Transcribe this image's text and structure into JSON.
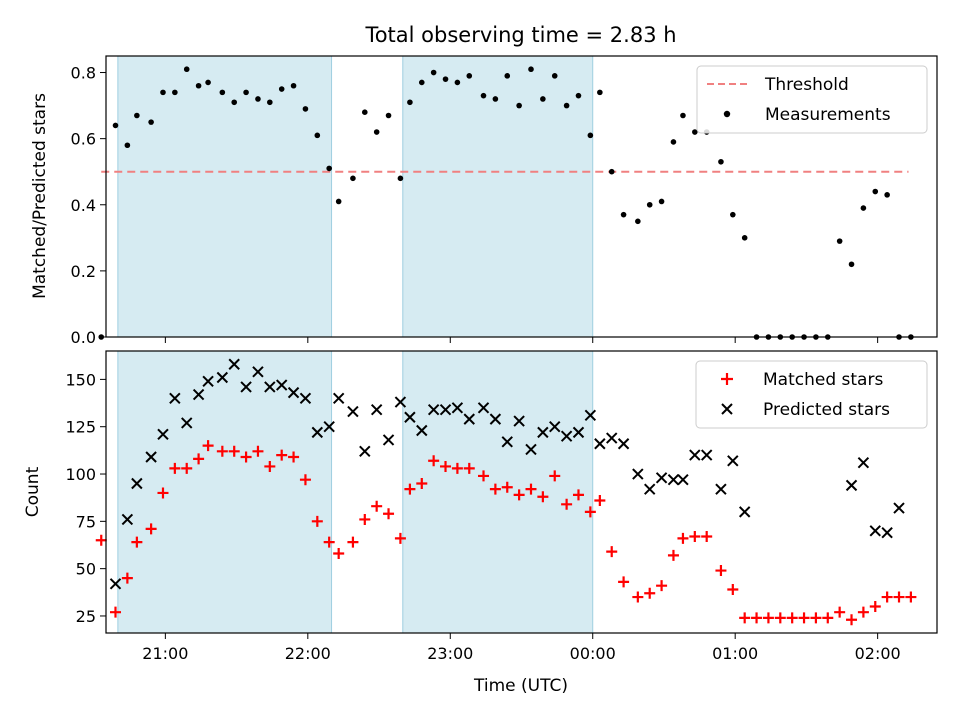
{
  "chart_data": [
    {
      "type": "scatter",
      "title": "Total observing time = 2.83 h",
      "ylabel": "Matched/Predicted stars",
      "xlabel": "",
      "ylim": [
        0,
        0.85
      ],
      "xlim": [
        "20:35",
        "02:25"
      ],
      "yticks": [
        "0.0",
        "0.2",
        "0.4",
        "0.6",
        "0.8"
      ],
      "legend": {
        "position": "top-right",
        "entries": [
          "Threshold",
          "Measurements"
        ]
      },
      "shaded_intervals": [
        [
          "20:40",
          "22:10"
        ],
        [
          "22:40",
          "00:00"
        ]
      ],
      "threshold": {
        "name": "Threshold",
        "value": 0.5,
        "x_range": [
          "20:33",
          "02:13"
        ],
        "color": "#f08080"
      },
      "series": [
        {
          "name": "Measurements",
          "color": "#000000",
          "marker": "dot",
          "x": [
            "20:33",
            "20:39",
            "20:44",
            "20:48",
            "20:54",
            "20:59",
            "21:04",
            "21:09",
            "21:14",
            "21:18",
            "21:24",
            "21:29",
            "21:34",
            "21:39",
            "21:44",
            "21:49",
            "21:54",
            "21:59",
            "22:04",
            "22:09",
            "22:13",
            "22:19",
            "22:24",
            "22:29",
            "22:34",
            "22:39",
            "22:43",
            "22:48",
            "22:53",
            "22:58",
            "23:03",
            "23:08",
            "23:14",
            "23:19",
            "23:24",
            "23:29",
            "23:34",
            "23:39",
            "23:44",
            "23:49",
            "23:54",
            "23:59",
            "00:03",
            "00:08",
            "00:13",
            "00:19",
            "00:24",
            "00:29",
            "00:34",
            "00:38",
            "00:43",
            "00:48",
            "00:54",
            "00:59",
            "01:04",
            "01:09",
            "01:14",
            "01:19",
            "01:24",
            "01:29",
            "01:34",
            "01:39",
            "01:44",
            "01:49",
            "01:54",
            "01:59",
            "02:04",
            "02:09",
            "02:14"
          ],
          "y": [
            0.0,
            0.64,
            0.58,
            0.67,
            0.65,
            0.74,
            0.74,
            0.81,
            0.76,
            0.77,
            0.74,
            0.71,
            0.74,
            0.72,
            0.71,
            0.75,
            0.76,
            0.69,
            0.61,
            0.51,
            0.41,
            0.48,
            0.68,
            0.62,
            0.67,
            0.48,
            0.71,
            0.77,
            0.8,
            0.78,
            0.77,
            0.79,
            0.73,
            0.72,
            0.79,
            0.7,
            0.81,
            0.72,
            0.79,
            0.7,
            0.73,
            0.61,
            0.74,
            0.5,
            0.37,
            0.35,
            0.4,
            0.41,
            0.59,
            0.67,
            0.62,
            0.62,
            0.53,
            0.37,
            0.3,
            0.0,
            0.0,
            0.0,
            0.0,
            0.0,
            0.0,
            0.0,
            0.29,
            0.22,
            0.39,
            0.44,
            0.43,
            0.0,
            0.0
          ]
        }
      ]
    },
    {
      "type": "scatter",
      "title": "",
      "ylabel": "Count",
      "xlabel": "Time (UTC)",
      "ylim": [
        16,
        165
      ],
      "xlim": [
        "20:35",
        "02:25"
      ],
      "yticks": [
        "25",
        "50",
        "75",
        "100",
        "125",
        "150"
      ],
      "xticks": [
        "21:00",
        "22:00",
        "23:00",
        "00:00",
        "01:00",
        "02:00"
      ],
      "legend": {
        "position": "top-right",
        "entries": [
          "Matched stars",
          "Predicted stars"
        ]
      },
      "shaded_intervals": [
        [
          "20:40",
          "22:10"
        ],
        [
          "22:40",
          "00:00"
        ]
      ],
      "series": [
        {
          "name": "Matched stars",
          "color": "#ff0000",
          "marker": "plus",
          "x": [
            "20:33",
            "20:39",
            "20:44",
            "20:48",
            "20:54",
            "20:59",
            "21:04",
            "21:09",
            "21:14",
            "21:18",
            "21:24",
            "21:29",
            "21:34",
            "21:39",
            "21:44",
            "21:49",
            "21:54",
            "21:59",
            "22:04",
            "22:09",
            "22:13",
            "22:19",
            "22:24",
            "22:29",
            "22:34",
            "22:39",
            "22:43",
            "22:48",
            "22:53",
            "22:58",
            "23:03",
            "23:08",
            "23:14",
            "23:19",
            "23:24",
            "23:29",
            "23:34",
            "23:39",
            "23:44",
            "23:49",
            "23:54",
            "23:59",
            "00:03",
            "00:08",
            "00:13",
            "00:19",
            "00:24",
            "00:29",
            "00:34",
            "00:38",
            "00:43",
            "00:48",
            "00:54",
            "00:59",
            "01:04",
            "01:09",
            "01:14",
            "01:19",
            "01:24",
            "01:29",
            "01:34",
            "01:39",
            "01:44",
            "01:49",
            "01:54",
            "01:59",
            "02:04",
            "02:09",
            "02:14"
          ],
          "y": [
            65,
            27,
            45,
            64,
            71,
            90,
            103,
            103,
            108,
            115,
            112,
            112,
            109,
            112,
            104,
            110,
            109,
            97,
            75,
            64,
            58,
            64,
            76,
            83,
            79,
            66,
            92,
            95,
            107,
            104,
            103,
            103,
            99,
            92,
            93,
            89,
            92,
            88,
            99,
            84,
            89,
            80,
            86,
            59,
            43,
            35,
            37,
            41,
            57,
            66,
            67,
            67,
            49,
            39,
            24,
            24,
            24,
            24,
            24,
            24,
            24,
            24,
            27,
            23,
            27,
            30,
            35,
            35,
            35
          ]
        },
        {
          "name": "Predicted stars",
          "color": "#000000",
          "marker": "x",
          "x": [
            "20:39",
            "20:44",
            "20:48",
            "20:54",
            "20:59",
            "21:04",
            "21:09",
            "21:14",
            "21:18",
            "21:24",
            "21:29",
            "21:34",
            "21:39",
            "21:44",
            "21:49",
            "21:54",
            "21:59",
            "22:04",
            "22:09",
            "22:13",
            "22:19",
            "22:24",
            "22:29",
            "22:34",
            "22:39",
            "22:43",
            "22:48",
            "22:53",
            "22:58",
            "23:03",
            "23:08",
            "23:14",
            "23:19",
            "23:24",
            "23:29",
            "23:34",
            "23:39",
            "23:44",
            "23:49",
            "23:54",
            "23:59",
            "00:03",
            "00:08",
            "00:13",
            "00:19",
            "00:24",
            "00:29",
            "00:34",
            "00:38",
            "00:43",
            "00:48",
            "00:54",
            "00:59",
            "01:04",
            "01:49",
            "01:54",
            "01:59",
            "02:04",
            "02:09"
          ],
          "y": [
            42,
            76,
            95,
            109,
            121,
            140,
            127,
            142,
            149,
            151,
            158,
            146,
            154,
            146,
            147,
            143,
            140,
            122,
            125,
            140,
            133,
            112,
            134,
            118,
            138,
            130,
            123,
            134,
            134,
            135,
            129,
            135,
            129,
            117,
            128,
            113,
            122,
            125,
            120,
            122,
            131,
            116,
            119,
            116,
            100,
            92,
            98,
            97,
            97,
            110,
            110,
            92,
            107,
            80,
            94,
            106,
            70,
            69,
            82
          ]
        }
      ]
    }
  ]
}
